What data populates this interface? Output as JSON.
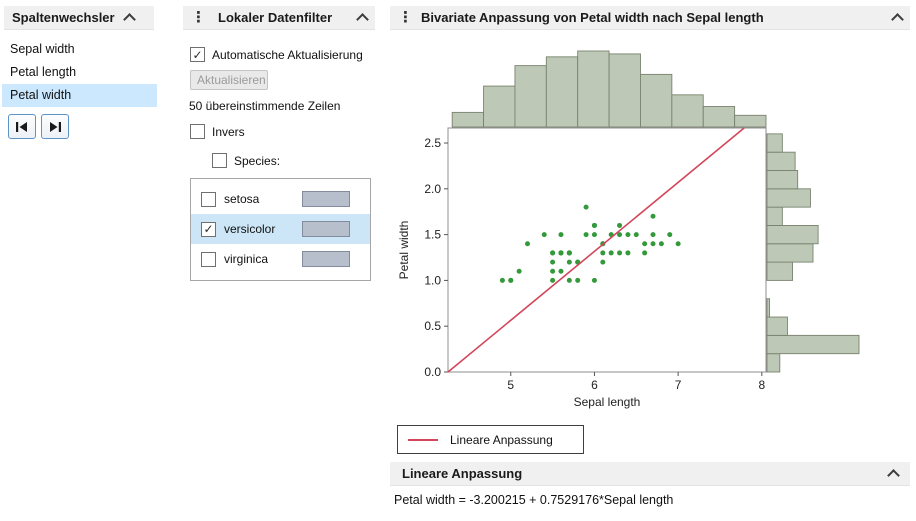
{
  "icons": {
    "menu_glyph": "⋮",
    "collapse_icon": "chevron-up",
    "first_button_icon": "skip-to-first",
    "last_button_icon": "skip-to-last"
  },
  "colors": {
    "selection": "#cce8ff",
    "species_selection": "#cde6f7",
    "header_background": "#f0f0f0"
  },
  "column_switcher": {
    "title": "Spaltenwechsler",
    "items": [
      {
        "label": "Sepal width",
        "selected": false
      },
      {
        "label": "Petal length",
        "selected": false
      },
      {
        "label": "Petal width",
        "selected": true
      }
    ]
  },
  "data_filter": {
    "title": "Lokaler Datenfilter",
    "auto_update": {
      "label": "Automatische Aktualisierung",
      "checked": true
    },
    "update_button": {
      "label": "Aktualisieren",
      "enabled": false
    },
    "matching_rows": "50 übereinstimmende Zeilen",
    "invert": {
      "label": "Invers",
      "checked": false
    },
    "species": {
      "label": "Species:",
      "checked": false
    },
    "species_items": [
      {
        "label": "setosa",
        "checked": false,
        "selected": false
      },
      {
        "label": "versicolor",
        "checked": true,
        "selected": true
      },
      {
        "label": "virginica",
        "checked": false,
        "selected": false
      }
    ]
  },
  "bivariate": {
    "title": "Bivariate Anpassung von Petal width nach Sepal length",
    "legend_label": "Lineare Anpassung",
    "fit_section": {
      "title": "Lineare Anpassung",
      "equation": "Petal width = -3.200215 + 0.7529176*Sepal length"
    }
  },
  "chart_data": {
    "type": "scatter",
    "title": "Bivariate Anpassung von Petal width nach Sepal length",
    "xlabel": "Sepal length",
    "ylabel": "Petal width",
    "xlim": [
      4.25,
      8.05
    ],
    "ylim": [
      0,
      2.664
    ],
    "grid": false,
    "legend_position": "below",
    "x_ticks": [
      {
        "value": 5,
        "label": "5"
      },
      {
        "value": 6,
        "label": "6"
      },
      {
        "value": 7,
        "label": "7"
      },
      {
        "value": 8,
        "label": "8"
      }
    ],
    "y_ticks": [
      {
        "value": 0,
        "label": "0.0"
      },
      {
        "value": 0.5,
        "label": "0.5"
      },
      {
        "value": 1,
        "label": "1.0"
      },
      {
        "value": 1.5,
        "label": "1.5"
      },
      {
        "value": 2,
        "label": "2.0"
      },
      {
        "value": 2.5,
        "label": "2.5"
      }
    ],
    "point_color": "#33993a",
    "points": [
      [
        7.0,
        1.4
      ],
      [
        6.4,
        1.5
      ],
      [
        6.9,
        1.5
      ],
      [
        5.5,
        1.3
      ],
      [
        6.5,
        1.5
      ],
      [
        5.7,
        1.3
      ],
      [
        6.3,
        1.6
      ],
      [
        4.9,
        1.0
      ],
      [
        6.6,
        1.3
      ],
      [
        5.2,
        1.4
      ],
      [
        5.0,
        1.0
      ],
      [
        5.9,
        1.5
      ],
      [
        6.0,
        1.0
      ],
      [
        6.1,
        1.4
      ],
      [
        5.6,
        1.3
      ],
      [
        6.7,
        1.4
      ],
      [
        5.6,
        1.5
      ],
      [
        5.8,
        1.0
      ],
      [
        6.2,
        1.5
      ],
      [
        5.6,
        1.1
      ],
      [
        5.9,
        1.8
      ],
      [
        6.1,
        1.3
      ],
      [
        6.3,
        1.5
      ],
      [
        6.1,
        1.2
      ],
      [
        6.4,
        1.3
      ],
      [
        6.6,
        1.4
      ],
      [
        6.8,
        1.4
      ],
      [
        6.7,
        1.7
      ],
      [
        6.0,
        1.5
      ],
      [
        5.7,
        1.0
      ],
      [
        5.5,
        1.1
      ],
      [
        5.5,
        1.0
      ],
      [
        5.8,
        1.2
      ],
      [
        6.0,
        1.6
      ],
      [
        5.4,
        1.5
      ],
      [
        6.0,
        1.6
      ],
      [
        6.7,
        1.5
      ],
      [
        6.3,
        1.3
      ],
      [
        5.6,
        1.3
      ],
      [
        5.5,
        1.3
      ],
      [
        5.5,
        1.2
      ],
      [
        6.1,
        1.4
      ],
      [
        5.8,
        1.2
      ],
      [
        5.0,
        1.0
      ],
      [
        5.6,
        1.3
      ],
      [
        5.7,
        1.2
      ],
      [
        5.7,
        1.3
      ],
      [
        6.2,
        1.3
      ],
      [
        5.1,
        1.1
      ],
      [
        5.7,
        1.3
      ]
    ],
    "fit_line": {
      "label": "Lineare Anpassung",
      "intercept": -3.200215,
      "slope": 0.7529176,
      "color": "#d4465a"
    },
    "histogram_fill": "#bdc9b6",
    "histogram_stroke": "#79826f",
    "top_histogram": {
      "variable": "Sepal length",
      "bin_start": 4.3,
      "bin_width": 0.375,
      "counts": [
        5,
        14,
        21,
        24,
        26,
        25,
        18,
        11,
        7,
        4
      ]
    },
    "right_histogram": {
      "variable": "Petal width",
      "bin_start": 0,
      "bin_width": 0.2,
      "counts": [
        5,
        36,
        8,
        1,
        0,
        10,
        18,
        20,
        6,
        17,
        12,
        11,
        6
      ]
    }
  }
}
